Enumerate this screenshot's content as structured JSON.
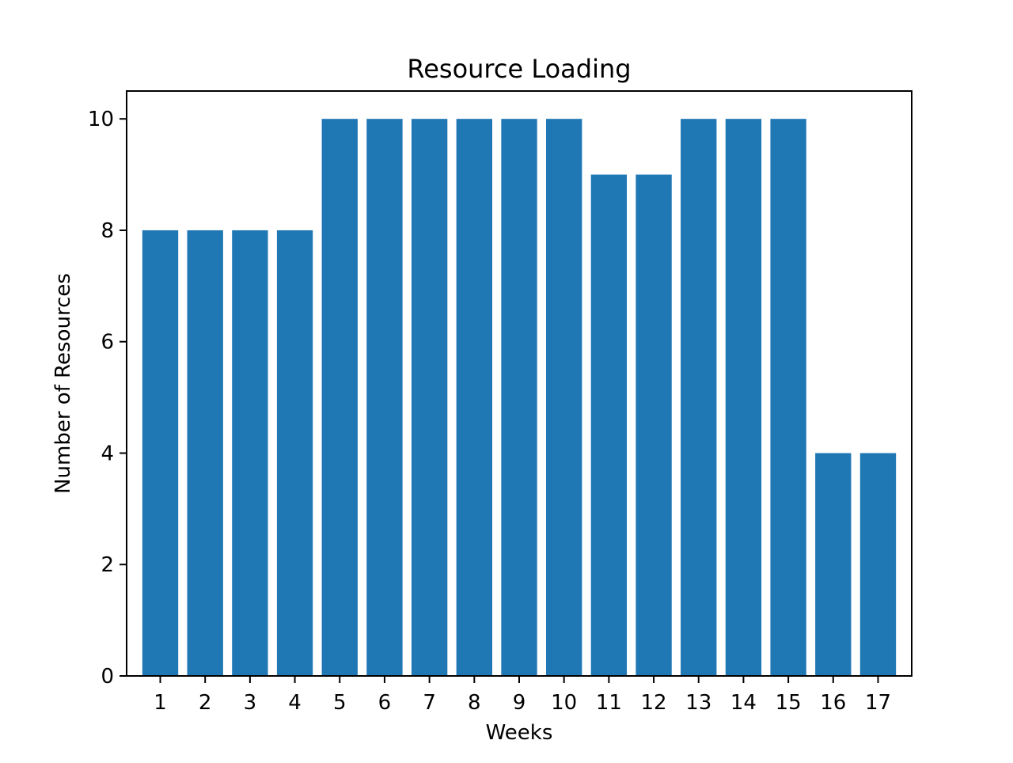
{
  "chart_data": {
    "type": "bar",
    "title": "Resource Loading",
    "xlabel": "Weeks",
    "ylabel": "Number of Resources",
    "categories": [
      "1",
      "2",
      "3",
      "4",
      "5",
      "6",
      "7",
      "8",
      "9",
      "10",
      "11",
      "12",
      "13",
      "14",
      "15",
      "16",
      "17"
    ],
    "values": [
      8,
      8,
      8,
      8,
      10,
      10,
      10,
      10,
      10,
      10,
      9,
      9,
      10,
      10,
      10,
      4,
      4
    ],
    "ylim": [
      0,
      10.5
    ],
    "yticks": [
      0,
      2,
      4,
      6,
      8,
      10
    ],
    "grid": false,
    "legend": "none",
    "colors": {
      "bar": "#1f77b4",
      "axes": "#000000",
      "background": "#ffffff"
    }
  }
}
